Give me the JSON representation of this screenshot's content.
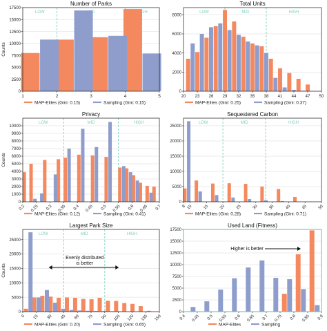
{
  "colors": {
    "map": "#F4895F",
    "samp": "#8E9DCC",
    "guide": "#7FCFC0",
    "axis": "#333333",
    "grid": "#E5E5E5",
    "fitness_frame": "#6CC5A7"
  },
  "chart_data": [
    {
      "type": "bar",
      "title": "Number of Parks",
      "ylabel": "Counts",
      "xlim": [
        1,
        5
      ],
      "ylim": [
        0,
        17500
      ],
      "xticks": [
        "1",
        "2",
        "3",
        "4",
        "5"
      ],
      "yticks": [
        "0",
        "2500",
        "5000",
        "7500",
        "10000",
        "12500",
        "15000",
        "17500"
      ],
      "regions": [
        "LOW",
        "MID",
        "HIGH"
      ],
      "region_bounds": [
        2,
        4
      ],
      "series": [
        {
          "name": "MAP-Elites (Gini: 0.15)",
          "x": [
            1.5,
            2.5,
            3.5,
            4.5
          ],
          "values": [
            8000,
            10800,
            11300,
            17200
          ]
        },
        {
          "name": "Sampling (Gini: 0.15)",
          "x": [
            1.5,
            2.5,
            3.5,
            4.5
          ],
          "values": [
            10800,
            16900,
            11600,
            7900
          ]
        }
      ]
    },
    {
      "type": "bar",
      "title": "Total Units",
      "ylabel": "",
      "xlim": [
        20,
        50
      ],
      "ylim": [
        0,
        8750
      ],
      "xticks": [
        "20",
        "23",
        "26",
        "29",
        "32",
        "35",
        "38",
        "41",
        "44",
        "47",
        "50"
      ],
      "yticks": [
        "0",
        "2000",
        "4000",
        "6000",
        "8000"
      ],
      "regions": [
        "LOW",
        "MID",
        "HIGH"
      ],
      "region_bounds": [
        29,
        38
      ],
      "series": [
        {
          "name": "MAP-Elites (Gini: 0.25)",
          "x": [
            21.5,
            23.5,
            25.5,
            27.5,
            29.5,
            31.5,
            33.5,
            35.5,
            37.5,
            39.5,
            41.5,
            43.5,
            45.5,
            47.5
          ],
          "values": [
            3400,
            4100,
            5600,
            6800,
            8500,
            7300,
            5700,
            5000,
            4700,
            3400,
            2400,
            1900,
            1300,
            700
          ]
        },
        {
          "name": "Sampling (Gini: 0.37)",
          "x": [
            21.5,
            23.5,
            25.5,
            27.5,
            29.5,
            31.5,
            33.5,
            35.5,
            37.5,
            39.5,
            41.5,
            43.5,
            45.5,
            47.5
          ],
          "values": [
            5000,
            6000,
            6700,
            7100,
            6400,
            5900,
            5200,
            4800,
            4000,
            1400,
            400,
            150,
            60,
            20
          ]
        }
      ]
    },
    {
      "type": "bar",
      "title": "Privacy",
      "ylabel": "Counts",
      "xlim": [
        0.2,
        0.7
      ],
      "ylim": [
        0,
        11000
      ],
      "xticks": [
        "0.2",
        "0.25",
        "0.3",
        "0.35",
        "0.4",
        "0.45",
        "0.5",
        "0.55",
        "0.6",
        "0.65",
        "0.7"
      ],
      "yticks": [
        "0",
        "1000",
        "2000",
        "3000",
        "4000",
        "5000",
        "6000",
        "7000",
        "8000",
        "9000",
        "10000"
      ],
      "regions": [
        "LOW",
        "MID",
        "HIGH"
      ],
      "region_bounds": [
        0.35,
        0.55
      ],
      "series": [
        {
          "name": "MAP-Elites (Gini: 0.12)",
          "x": [
            0.2125,
            0.2375,
            0.2625,
            0.2875,
            0.3125,
            0.3375,
            0.3625,
            0.3875,
            0.4125,
            0.4375,
            0.4625,
            0.4875,
            0.5125,
            0.5375,
            0.5625,
            0.5875,
            0.6125,
            0.6375,
            0.6625,
            0.6875
          ],
          "values": [
            3900,
            5000,
            0,
            5500,
            0,
            5600,
            5800,
            0,
            6200,
            0,
            6100,
            0,
            5900,
            0,
            4500,
            4400,
            3500,
            2500,
            2100,
            2000
          ]
        },
        {
          "name": "Sampling (Gini: 0.41)",
          "x": [
            0.2125,
            0.2375,
            0.2625,
            0.2875,
            0.3125,
            0.3375,
            0.3625,
            0.3875,
            0.4125,
            0.4375,
            0.4625,
            0.4875,
            0.5125,
            0.5375,
            0.5625,
            0.5875,
            0.6125,
            0.6375,
            0.6625,
            0.6875
          ],
          "values": [
            0,
            400,
            1100,
            0,
            3600,
            0,
            7000,
            0,
            9600,
            0,
            7200,
            0,
            10500,
            0,
            4700,
            3900,
            2800,
            0,
            1200,
            0
          ]
        }
      ]
    },
    {
      "type": "bar",
      "title": "Sequestered Carbon",
      "ylabel": "",
      "xlim": [
        8,
        50
      ],
      "ylim": [
        0,
        27500
      ],
      "xticks": [
        "8",
        "10",
        "15",
        "20",
        "25",
        "30",
        "35",
        "40",
        "45",
        "50"
      ],
      "yticks": [
        "0",
        "5000",
        "10000",
        "15000",
        "20000",
        "25000"
      ],
      "regions": [
        "LOW",
        "MID",
        "HIGH"
      ],
      "region_bounds": [
        20,
        33
      ],
      "series": [
        {
          "name": "MAP-Elites (Gini: 0.28)",
          "x": [
            9,
            12.5,
            17.5,
            22.5,
            27.5,
            32.5,
            37.5,
            42.5,
            47.5
          ],
          "values": [
            4400,
            7000,
            6000,
            6100,
            5900,
            5000,
            4200,
            1600,
            100
          ]
        },
        {
          "name": "Sampling (Gini: 0.71)",
          "x": [
            9,
            12.5,
            17.5,
            22.5,
            27.5,
            32.5,
            37.5,
            42.5,
            47.5
          ],
          "values": [
            26500,
            3400,
            2200,
            1400,
            900,
            500,
            250,
            80,
            20
          ]
        }
      ]
    },
    {
      "type": "bar",
      "title": "Largest Park Size",
      "ylabel": "Counts",
      "xlim": [
        0,
        150
      ],
      "ylim": [
        0,
        28500
      ],
      "xticks": [
        "0",
        "15",
        "30",
        "45",
        "60",
        "75",
        "90",
        "105",
        "120",
        "135",
        "150"
      ],
      "yticks": [
        "0",
        "5000",
        "10000",
        "15000",
        "20000",
        "25000"
      ],
      "regions": [
        "LOW",
        "MID",
        "HIGH"
      ],
      "region_bounds": [
        45,
        90
      ],
      "annotation": "Evenly distributed\nis better",
      "series": [
        {
          "name": "MAP-Elites (Gini: 0.20)",
          "x": [
            6,
            15,
            24,
            33,
            42,
            51,
            60,
            69,
            78,
            87,
            96,
            105,
            114,
            123,
            132,
            141
          ],
          "values": [
            1000,
            4900,
            5500,
            5200,
            4800,
            4900,
            4800,
            4400,
            4300,
            4800,
            3800,
            3700,
            3000,
            2700,
            1900,
            300
          ]
        },
        {
          "name": "Sampling (Gini: 0.65)",
          "x": [
            6,
            15,
            24,
            33,
            42,
            51,
            60,
            69,
            78,
            87,
            96,
            105,
            114,
            123,
            132,
            141
          ],
          "values": [
            27500,
            4900,
            7500,
            3100,
            1000,
            600,
            400,
            300,
            250,
            200,
            150,
            100,
            80,
            60,
            30,
            10
          ]
        }
      ]
    },
    {
      "type": "bar",
      "title": "Used Land (Fitness)",
      "ylabel": "",
      "xlim": [
        0.4,
        0.9
      ],
      "ylim": [
        0,
        17500
      ],
      "xticks": [
        "0.4",
        "0.45",
        "0.5",
        "0.55",
        "0.6",
        "0.65",
        "0.7",
        "0.75",
        "0.8",
        "0.85",
        "0.9"
      ],
      "yticks": [
        "0",
        "2500",
        "5000",
        "7500",
        "10000",
        "12500",
        "15000",
        "17500"
      ],
      "annotation": "Higher is better",
      "series": [
        {
          "name": "MAP-Elites",
          "x": [
            0.425,
            0.475,
            0.525,
            0.575,
            0.625,
            0.675,
            0.725,
            0.775,
            0.825,
            0.875
          ],
          "values": [
            0,
            0,
            0,
            0,
            0,
            0,
            0,
            3800,
            12200,
            17300
          ]
        },
        {
          "name": "Sampling",
          "x": [
            0.425,
            0.475,
            0.525,
            0.575,
            0.625,
            0.675,
            0.725,
            0.775,
            0.825,
            0.875
          ],
          "values": [
            1000,
            2200,
            4700,
            7100,
            9400,
            10900,
            7200,
            6900,
            4800,
            1400
          ]
        }
      ]
    }
  ]
}
